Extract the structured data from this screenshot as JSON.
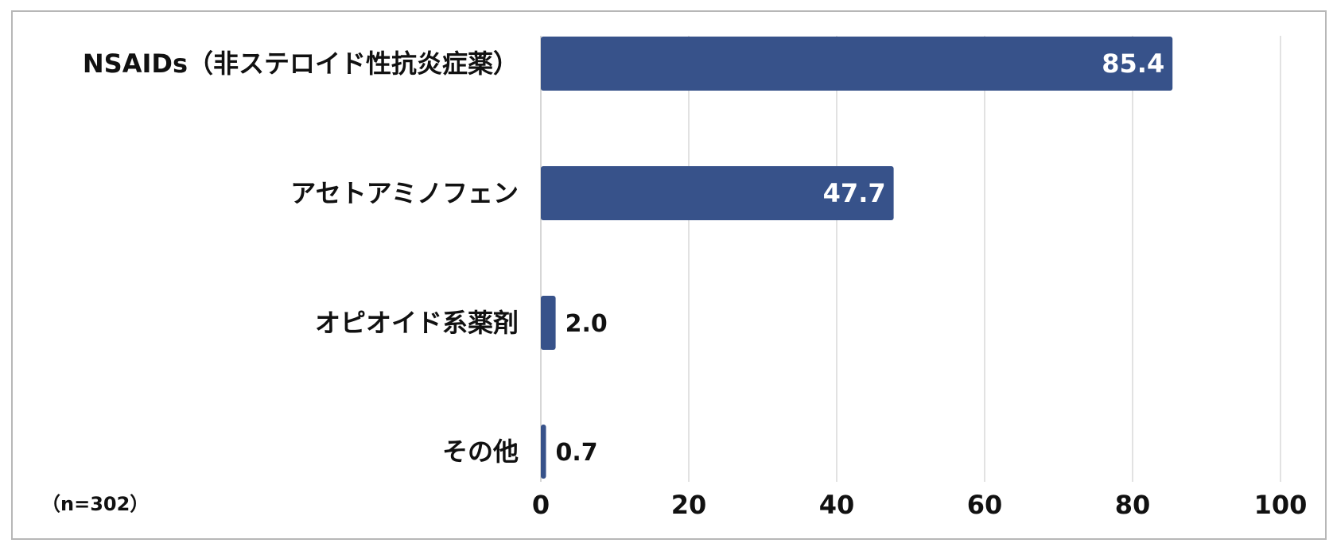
{
  "chart_data": {
    "type": "bar",
    "orientation": "horizontal",
    "categories": [
      "NSAIDs（非ステロイド性抗炎症薬）",
      "アセトアミノフェン",
      "オピオイド系薬剤",
      "その他"
    ],
    "values": [
      85.4,
      47.7,
      2.0,
      0.7
    ],
    "value_labels": [
      "85.4",
      "47.7",
      "2.0",
      "0.7"
    ],
    "xlim": [
      0,
      100
    ],
    "xticks": [
      0,
      20,
      40,
      60,
      80,
      100
    ],
    "xtick_labels": [
      "0",
      "20",
      "40",
      "60",
      "80",
      "100"
    ],
    "grid": "vertical",
    "legend": "none",
    "note": "（n=302）",
    "colors": {
      "bar": "#37528a",
      "grid": "#d9d9d9",
      "border": "#b7b7b7"
    }
  }
}
